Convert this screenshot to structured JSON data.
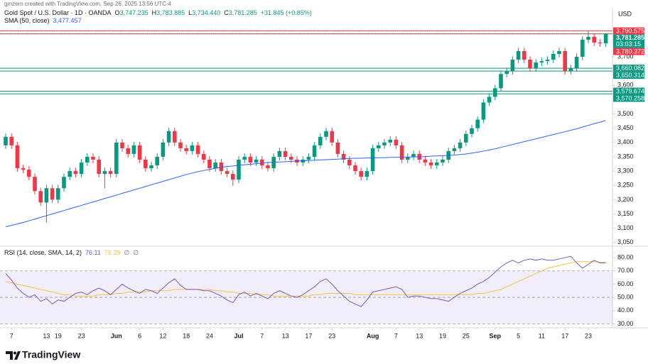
{
  "header": {
    "credit": "gmzern created with TradingView.com, Sep 26, 2025 13:56 UTC-4"
  },
  "chart_data": [
    {
      "type": "candlestick",
      "title": "Gold Spot / U.S. Dollar · 1D · OANDA",
      "legend": [
        {
          "key": "O",
          "text": "3,747.235"
        },
        {
          "key": "H",
          "text": "3,783.885"
        },
        {
          "key": "L",
          "text": "3,734.440"
        },
        {
          "key": "C",
          "text": "3,781.285"
        }
      ],
      "change": "+31.845 (+0.85%)",
      "currency": "USD",
      "up_color": "#089981",
      "down_color": "#f23645",
      "ylim": [
        3042,
        3874
      ],
      "yticks": [
        {
          "value": 3050,
          "label": "3,050"
        },
        {
          "value": 3100,
          "label": "3,100"
        },
        {
          "value": 3150,
          "label": "3,150"
        },
        {
          "value": 3200,
          "label": "3,200"
        },
        {
          "value": 3250,
          "label": "3,250"
        },
        {
          "value": 3300,
          "label": "3,300"
        },
        {
          "value": 3350,
          "label": "3,350"
        },
        {
          "value": 3400,
          "label": "3,400"
        },
        {
          "value": 3450,
          "label": "3,450"
        },
        {
          "value": 3500,
          "label": "3,500"
        },
        {
          "value": 3600,
          "label": "3,600"
        },
        {
          "value": 3700,
          "label": "3,700"
        }
      ],
      "xticks": [
        {
          "value": 1,
          "label": "7"
        },
        {
          "value": 7,
          "label": "13"
        },
        {
          "value": 9,
          "label": "19"
        },
        {
          "value": 13,
          "label": "23"
        },
        {
          "value": 19,
          "label": "Jun"
        },
        {
          "value": 23,
          "label": "6"
        },
        {
          "value": 27,
          "label": "12"
        },
        {
          "value": 31,
          "label": "18"
        },
        {
          "value": 35,
          "label": "24"
        },
        {
          "value": 40,
          "label": "Jul"
        },
        {
          "value": 44,
          "label": "7"
        },
        {
          "value": 48,
          "label": "13"
        },
        {
          "value": 52,
          "label": "17"
        },
        {
          "value": 56,
          "label": "23"
        },
        {
          "value": 63,
          "label": "Aug"
        },
        {
          "value": 67,
          "label": "7"
        },
        {
          "value": 71,
          "label": "13"
        },
        {
          "value": 75,
          "label": "19"
        },
        {
          "value": 79,
          "label": "25"
        },
        {
          "value": 84,
          "label": "Sep"
        },
        {
          "value": 88,
          "label": "5"
        },
        {
          "value": 92,
          "label": "11"
        },
        {
          "value": 96,
          "label": "17"
        },
        {
          "value": 100,
          "label": "23"
        }
      ],
      "ohlc": [
        [
          3390,
          3432,
          3378,
          3420
        ],
        [
          3420,
          3432,
          3378,
          3390
        ],
        [
          3390,
          3402,
          3298,
          3310
        ],
        [
          3310,
          3322,
          3293,
          3305
        ],
        [
          3305,
          3317,
          3268,
          3280
        ],
        [
          3280,
          3292,
          3218,
          3230
        ],
        [
          3230,
          3242,
          3178,
          3190
        ],
        [
          3190,
          3252,
          3120,
          3240
        ],
        [
          3240,
          3252,
          3188,
          3200
        ],
        [
          3200,
          3252,
          3188,
          3240
        ],
        [
          3240,
          3292,
          3228,
          3280
        ],
        [
          3280,
          3312,
          3268,
          3300
        ],
        [
          3300,
          3312,
          3278,
          3290
        ],
        [
          3290,
          3342,
          3278,
          3330
        ],
        [
          3330,
          3362,
          3318,
          3350
        ],
        [
          3350,
          3362,
          3328,
          3340
        ],
        [
          3340,
          3352,
          3278,
          3290
        ],
        [
          3290,
          3312,
          3240,
          3300
        ],
        [
          3300,
          3312,
          3278,
          3290
        ],
        [
          3290,
          3412,
          3278,
          3400
        ],
        [
          3400,
          3412,
          3368,
          3380
        ],
        [
          3380,
          3392,
          3348,
          3360
        ],
        [
          3360,
          3402,
          3348,
          3390
        ],
        [
          3390,
          3402,
          3328,
          3340
        ],
        [
          3340,
          3352,
          3298,
          3310
        ],
        [
          3310,
          3332,
          3298,
          3320
        ],
        [
          3320,
          3362,
          3308,
          3350
        ],
        [
          3350,
          3412,
          3338,
          3400
        ],
        [
          3400,
          3452,
          3388,
          3440
        ],
        [
          3440,
          3452,
          3388,
          3400
        ],
        [
          3400,
          3412,
          3368,
          3380
        ],
        [
          3380,
          3392,
          3358,
          3370
        ],
        [
          3370,
          3402,
          3358,
          3390
        ],
        [
          3390,
          3402,
          3348,
          3360
        ],
        [
          3360,
          3372,
          3328,
          3340
        ],
        [
          3340,
          3352,
          3298,
          3310
        ],
        [
          3310,
          3342,
          3298,
          3330
        ],
        [
          3330,
          3342,
          3288,
          3300
        ],
        [
          3300,
          3312,
          3278,
          3290
        ],
        [
          3290,
          3302,
          3248,
          3270
        ],
        [
          3270,
          3352,
          3258,
          3340
        ],
        [
          3340,
          3362,
          3328,
          3350
        ],
        [
          3350,
          3362,
          3318,
          3330
        ],
        [
          3330,
          3352,
          3318,
          3340
        ],
        [
          3340,
          3352,
          3308,
          3320
        ],
        [
          3320,
          3332,
          3298,
          3310
        ],
        [
          3310,
          3362,
          3298,
          3350
        ],
        [
          3350,
          3382,
          3338,
          3370
        ],
        [
          3370,
          3382,
          3338,
          3350
        ],
        [
          3350,
          3362,
          3328,
          3340
        ],
        [
          3340,
          3352,
          3318,
          3330
        ],
        [
          3330,
          3352,
          3318,
          3340
        ],
        [
          3340,
          3362,
          3328,
          3350
        ],
        [
          3350,
          3402,
          3338,
          3390
        ],
        [
          3390,
          3432,
          3378,
          3420
        ],
        [
          3420,
          3452,
          3408,
          3440
        ],
        [
          3440,
          3452,
          3388,
          3400
        ],
        [
          3400,
          3412,
          3348,
          3360
        ],
        [
          3360,
          3372,
          3328,
          3340
        ],
        [
          3340,
          3352,
          3308,
          3320
        ],
        [
          3320,
          3332,
          3288,
          3300
        ],
        [
          3300,
          3312,
          3268,
          3280
        ],
        [
          3280,
          3312,
          3268,
          3300
        ],
        [
          3300,
          3392,
          3288,
          3380
        ],
        [
          3380,
          3402,
          3368,
          3390
        ],
        [
          3390,
          3412,
          3378,
          3400
        ],
        [
          3400,
          3422,
          3388,
          3410
        ],
        [
          3410,
          3422,
          3378,
          3390
        ],
        [
          3390,
          3402,
          3328,
          3340
        ],
        [
          3340,
          3362,
          3328,
          3350
        ],
        [
          3350,
          3372,
          3338,
          3360
        ],
        [
          3360,
          3372,
          3328,
          3340
        ],
        [
          3340,
          3352,
          3318,
          3330
        ],
        [
          3330,
          3342,
          3308,
          3320
        ],
        [
          3320,
          3342,
          3308,
          3330
        ],
        [
          3330,
          3352,
          3318,
          3340
        ],
        [
          3340,
          3382,
          3328,
          3370
        ],
        [
          3370,
          3392,
          3358,
          3380
        ],
        [
          3380,
          3412,
          3368,
          3400
        ],
        [
          3400,
          3442,
          3388,
          3430
        ],
        [
          3430,
          3462,
          3418,
          3450
        ],
        [
          3450,
          3492,
          3438,
          3480
        ],
        [
          3480,
          3552,
          3468,
          3540
        ],
        [
          3540,
          3572,
          3528,
          3560
        ],
        [
          3560,
          3602,
          3548,
          3590
        ],
        [
          3590,
          3652,
          3578,
          3640
        ],
        [
          3640,
          3662,
          3628,
          3650
        ],
        [
          3650,
          3702,
          3638,
          3690
        ],
        [
          3690,
          3732,
          3678,
          3720
        ],
        [
          3720,
          3732,
          3678,
          3690
        ],
        [
          3690,
          3702,
          3648,
          3660
        ],
        [
          3660,
          3692,
          3648,
          3680
        ],
        [
          3680,
          3697,
          3668,
          3685
        ],
        [
          3685,
          3702,
          3673,
          3690
        ],
        [
          3690,
          3722,
          3678,
          3710
        ],
        [
          3710,
          3732,
          3698,
          3720
        ],
        [
          3720,
          3732,
          3638,
          3650
        ],
        [
          3650,
          3672,
          3638,
          3660
        ],
        [
          3660,
          3712,
          3648,
          3700
        ],
        [
          3700,
          3772,
          3688,
          3760
        ],
        [
          3760,
          3790,
          3748,
          3770
        ],
        [
          3770,
          3782,
          3738,
          3750
        ],
        [
          3750,
          3762,
          3735,
          3749.44
        ],
        [
          3747.235,
          3783.885,
          3734.44,
          3781.285
        ]
      ],
      "indicator": {
        "name": "SMA (50, close)",
        "value_label": "3,477.457",
        "color": "#2962ff",
        "values": [
          3105,
          3110,
          3115,
          3120,
          3126,
          3132,
          3138,
          3144,
          3150,
          3156,
          3162,
          3168,
          3174,
          3180,
          3186,
          3192,
          3198,
          3204,
          3210,
          3216,
          3222,
          3228,
          3234,
          3240,
          3246,
          3252,
          3258,
          3264,
          3270,
          3276,
          3282,
          3288,
          3293,
          3298,
          3302,
          3306,
          3310,
          3313,
          3316,
          3318,
          3320,
          3322,
          3324,
          3326,
          3328,
          3330,
          3331,
          3332,
          3333,
          3334,
          3335,
          3336,
          3337,
          3338,
          3339,
          3340,
          3341,
          3342,
          3343,
          3344,
          3345,
          3345,
          3346,
          3346,
          3347,
          3347,
          3348,
          3348,
          3349,
          3349,
          3350,
          3350,
          3351,
          3352,
          3353,
          3354,
          3355,
          3356,
          3358,
          3360,
          3363,
          3366,
          3370,
          3374,
          3378,
          3383,
          3388,
          3393,
          3398,
          3403,
          3408,
          3413,
          3418,
          3423,
          3428,
          3433,
          3438,
          3443,
          3448,
          3454,
          3460,
          3466,
          3471,
          3477.457
        ]
      },
      "levels": [
        {
          "value": 3790.575,
          "label": "3,790.575",
          "color": "#f23645"
        },
        {
          "value": 3780.372,
          "label": "3,780.372",
          "color": "#f23645"
        },
        {
          "value": 3660.082,
          "label": "3,660.082",
          "color": "#089981"
        },
        {
          "value": 3650.314,
          "label": "3,650.314",
          "color": "#089981"
        },
        {
          "value": 3579.674,
          "label": "3,579.674",
          "color": "#089981"
        },
        {
          "value": 3570.258,
          "label": "3,570.258",
          "color": "#089981"
        }
      ],
      "last_price": {
        "value": 3781.285,
        "label": "3,781.285",
        "countdown": "03:03:15",
        "color": "#089981"
      }
    },
    {
      "type": "line",
      "title": "RSI (14, close, SMA, 14, 2)",
      "series": [
        {
          "value_label": "76.11",
          "color": "#7e57c2",
          "values": [
            68,
            63,
            57,
            53,
            50,
            52,
            47,
            49,
            45,
            48,
            47,
            50,
            53,
            54,
            52,
            55,
            57,
            55,
            52,
            56,
            60,
            57,
            55,
            53,
            56,
            55,
            53,
            57,
            61,
            64,
            59,
            56,
            56,
            56,
            55,
            55,
            53,
            51,
            48,
            46,
            52,
            54,
            51,
            53,
            51,
            49,
            53,
            55,
            53,
            51,
            50,
            52,
            55,
            58,
            62,
            64,
            60,
            55,
            51,
            47,
            45,
            43,
            48,
            54,
            55,
            56,
            57,
            58,
            56,
            50,
            51,
            51,
            50,
            49,
            49,
            48,
            47,
            50,
            53,
            55,
            57,
            60,
            62,
            65,
            69,
            73,
            76,
            78,
            76,
            78,
            79,
            78,
            79,
            78,
            78,
            79,
            80,
            81,
            76,
            72,
            75,
            78,
            76,
            76.11
          ]
        },
        {
          "value_label": "76.39",
          "color": "#f5c343",
          "values": [
            62,
            61,
            60,
            59,
            58,
            57,
            56,
            55,
            54,
            53,
            52,
            52,
            51,
            51,
            51,
            51,
            52,
            52,
            52,
            53,
            53,
            54,
            54,
            54,
            54,
            55,
            55,
            55,
            55,
            56,
            56,
            56,
            56,
            56,
            56,
            56,
            55,
            55,
            54,
            54,
            53,
            53,
            53,
            52,
            52,
            52,
            51,
            51,
            51,
            51,
            51,
            51,
            51,
            52,
            52,
            53,
            53,
            53,
            53,
            53,
            52,
            52,
            52,
            52,
            52,
            52,
            52,
            52,
            52,
            52,
            52,
            52,
            52,
            52,
            52,
            52,
            52,
            52,
            52,
            52,
            52,
            53,
            53,
            54,
            55,
            56,
            58,
            60,
            62,
            64,
            66,
            68,
            70,
            72,
            73,
            74,
            75,
            76,
            77,
            77,
            77,
            77,
            76.5,
            76.39
          ]
        }
      ],
      "extra_labels": [
        "∅",
        "∅"
      ],
      "ylim": [
        27,
        87
      ],
      "yticks": [
        {
          "value": 80,
          "label": "80.00"
        },
        {
          "value": 70,
          "label": "70.00"
        },
        {
          "value": 60,
          "label": "60.00"
        },
        {
          "value": 50,
          "label": "50.00"
        },
        {
          "value": 40,
          "label": "40.00"
        },
        {
          "value": 30,
          "label": "30.00"
        }
      ],
      "band": [
        70,
        30
      ],
      "midline": 50
    }
  ],
  "footer": {
    "brand": "TradingView"
  }
}
